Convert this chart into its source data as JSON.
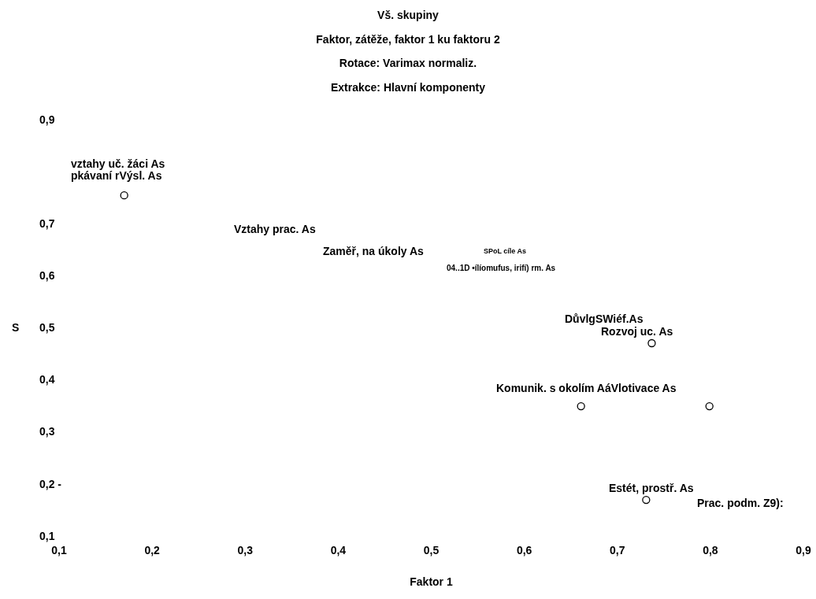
{
  "chart_data": {
    "type": "scatter",
    "title": "Vš. skupiny",
    "subtitle": "Faktor, zátěže, faktor 1 ku faktoru 2",
    "xlabel": "Faktor 1",
    "ylabel": "S",
    "annotations": [
      "Rotace: Varimax normaliz.",
      "Extrakce: Hlavní komponenty",
      "vztahy uč. žáci As",
      "pkávaní rVýsl. As",
      "Vztahy prac. As",
      "Zaměř, na úkoly As",
      "SPoL cíle As",
      "04..1D •ílíomufus, irifí) rm. As",
      "DůvlgSWiéf.As",
      "Rozvoj uc. As",
      "Komunik. s okolím AáVlotivace As",
      "Estét, prostř. As",
      "Prac. podm. Z9):"
    ],
    "x": [
      0.17,
      0.737,
      0.661,
      0.799,
      0.731
    ],
    "values": [
      0.756,
      0.472,
      0.351,
      0.351,
      0.171
    ],
    "color": "#000000",
    "marker": "circle",
    "grid": false,
    "xlim": [
      0.1,
      0.9
    ],
    "ylim": [
      0.1,
      0.9
    ],
    "xticks": [
      {
        "value": 0.1,
        "label": "0,1"
      },
      {
        "value": 0.2,
        "label": "0,2"
      },
      {
        "value": 0.3,
        "label": "0,3"
      },
      {
        "value": 0.4,
        "label": "0,4"
      },
      {
        "value": 0.5,
        "label": "0,5"
      },
      {
        "value": 0.6,
        "label": "0,6"
      },
      {
        "value": 0.7,
        "label": "0,7"
      },
      {
        "value": 0.8,
        "label": "0,8"
      },
      {
        "value": 0.9,
        "label": "0,9"
      }
    ],
    "yticks": [
      {
        "value": 0.1,
        "label": "0,1"
      },
      {
        "value": 0.2,
        "label": "0,2 -"
      },
      {
        "value": 0.3,
        "label": "0,3"
      },
      {
        "value": 0.4,
        "label": "0,4"
      },
      {
        "value": 0.5,
        "label": "0,5"
      },
      {
        "value": 0.6,
        "label": "0,6"
      },
      {
        "value": 0.7,
        "label": "0,7"
      },
      {
        "value": 0.9,
        "label": "0,9"
      }
    ]
  }
}
